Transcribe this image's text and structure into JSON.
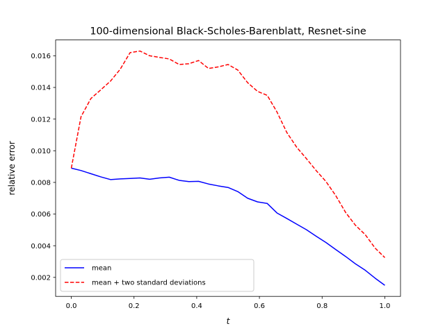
{
  "chart_data": {
    "type": "line",
    "title": "100-dimensional Black-Scholes-Barenblatt, Resnet-sine",
    "xlabel": "t",
    "ylabel": "relative error",
    "xlim": [
      -0.05,
      1.05
    ],
    "ylim": [
      0.0008,
      0.017
    ],
    "x_ticks": [
      0.0,
      0.2,
      0.4,
      0.6,
      0.8,
      1.0
    ],
    "x_tick_labels": [
      "0.0",
      "0.2",
      "0.4",
      "0.6",
      "0.8",
      "1.0"
    ],
    "y_ticks": [
      0.002,
      0.004,
      0.006,
      0.008,
      0.01,
      0.012,
      0.014,
      0.016
    ],
    "y_tick_labels": [
      "0.002",
      "0.004",
      "0.006",
      "0.008",
      "0.010",
      "0.012",
      "0.014",
      "0.016"
    ],
    "grid": false,
    "legend_position": "lower-left",
    "x": [
      0.0,
      0.031,
      0.0625,
      0.094,
      0.125,
      0.156,
      0.1875,
      0.219,
      0.25,
      0.281,
      0.3125,
      0.344,
      0.375,
      0.406,
      0.4375,
      0.469,
      0.5,
      0.531,
      0.5625,
      0.594,
      0.625,
      0.656,
      0.6875,
      0.719,
      0.75,
      0.781,
      0.8125,
      0.844,
      0.875,
      0.906,
      0.9375,
      0.969,
      1.0
    ],
    "series": [
      {
        "name": "mean",
        "color": "#0000ff",
        "dash": "solid",
        "values": [
          0.0089,
          0.00875,
          0.00855,
          0.00835,
          0.00818,
          0.00822,
          0.00825,
          0.00828,
          0.0082,
          0.00828,
          0.00833,
          0.00813,
          0.00805,
          0.00807,
          0.0079,
          0.00778,
          0.00768,
          0.00742,
          0.007,
          0.00677,
          0.00667,
          0.00607,
          0.00572,
          0.00536,
          0.00501,
          0.0046,
          0.0042,
          0.00375,
          0.00332,
          0.00286,
          0.00245,
          0.00195,
          0.0015
        ]
      },
      {
        "name": "mean + two standard deviations",
        "color": "#ff0000",
        "dash": "dashed",
        "values": [
          0.0089,
          0.01215,
          0.0133,
          0.01385,
          0.0144,
          0.01515,
          0.0162,
          0.0163,
          0.016,
          0.0159,
          0.0158,
          0.01545,
          0.0155,
          0.0157,
          0.0152,
          0.0153,
          0.01545,
          0.0151,
          0.0143,
          0.01375,
          0.0135,
          0.01245,
          0.01115,
          0.01022,
          0.0095,
          0.00875,
          0.00805,
          0.00715,
          0.0061,
          0.0053,
          0.0047,
          0.00385,
          0.00325
        ]
      }
    ]
  }
}
